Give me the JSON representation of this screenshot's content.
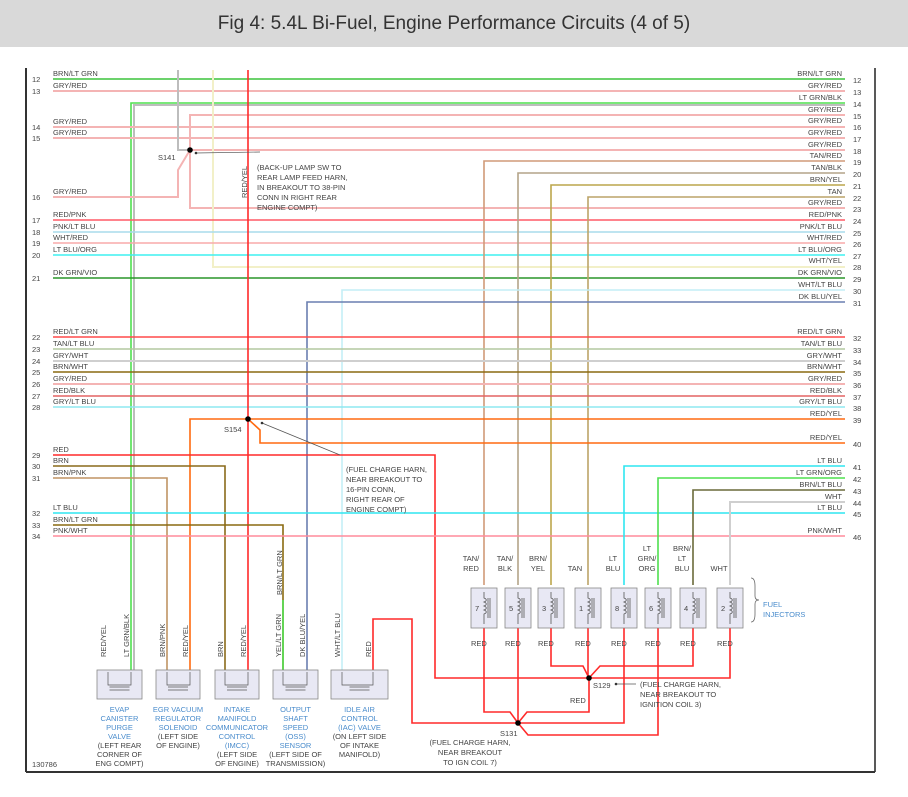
{
  "title": "Fig 4: 5.4L Bi-Fuel, Engine Performance Circuits (4 of 5)",
  "figure_id": "130786",
  "wire_colors": {
    "grn": "#3cc43c",
    "pink": "#f4b4b4",
    "ltgrn": "#4fe04f",
    "red": "#ff2a2a",
    "orange": "#ff6a10",
    "yellow": "#f4efa8",
    "gray": "#bdbdbd",
    "tanred": "#d09a78",
    "tanblk": "#b4a488",
    "brnyel": "#bca64c",
    "tan": "#bca468",
    "redpnk": "#ff5a66",
    "pnkltblu": "#a8dcec",
    "whtred": "#f8aaaa",
    "ltbluorg": "#3ff0f0",
    "whtyel": "#f2f0c8",
    "dkgrnvio": "#2a962a",
    "whtltblu": "#c4eef6",
    "dkbluyel": "#6a7fb0",
    "brn": "#8a6a1a",
    "brnpnk": "#c09464",
    "redblk": "#e46464",
    "gryltblu": "#8ee8f0",
    "ltblu": "#2ee6f0",
    "pnkwht": "#ff8c9c",
    "redltgrn": "#ff4a4a",
    "tanltblu": "#b4c8a0",
    "grywht": "#cfcfcf",
    "brnwht": "#8a6a10",
    "brnltblu": "#6a6a3a",
    "splice": "#000000",
    "component_fill": "#e8e8f4",
    "component_label": "#4a8ccc"
  },
  "left_rows": [
    {
      "num": "12",
      "label": "BRN/LT GRN"
    },
    {
      "num": "13",
      "label": "GRY/RED"
    },
    {
      "num": "14",
      "label": "GRY/RED"
    },
    {
      "num": "15",
      "label": "GRY/RED"
    },
    {
      "num": "16",
      "label": "GRY/RED"
    },
    {
      "num": "17",
      "label": "RED/PNK"
    },
    {
      "num": "18",
      "label": "PNK/LT BLU"
    },
    {
      "num": "19",
      "label": "WHT/RED"
    },
    {
      "num": "20",
      "label": "LT BLU/ORG"
    },
    {
      "num": "21",
      "label": "DK GRN/VIO"
    },
    {
      "num": "22",
      "label": "RED/LT GRN"
    },
    {
      "num": "23",
      "label": "TAN/LT BLU"
    },
    {
      "num": "24",
      "label": "GRY/WHT"
    },
    {
      "num": "25",
      "label": "BRN/WHT"
    },
    {
      "num": "26",
      "label": "GRY/RED"
    },
    {
      "num": "27",
      "label": "RED/BLK"
    },
    {
      "num": "28",
      "label": "GRY/LT BLU"
    },
    {
      "num": "29",
      "label": "RED"
    },
    {
      "num": "30",
      "label": "BRN"
    },
    {
      "num": "31",
      "label": "BRN/PNK"
    },
    {
      "num": "32",
      "label": "LT BLU"
    },
    {
      "num": "33",
      "label": "BRN/LT GRN"
    },
    {
      "num": "34",
      "label": "PNK/WHT"
    }
  ],
  "right_rows": [
    {
      "num": "12",
      "label": "BRN/LT GRN"
    },
    {
      "num": "13",
      "label": "GRY/RED"
    },
    {
      "num": "14",
      "label": "LT GRN/BLK"
    },
    {
      "num": "15",
      "label": "GRY/RED"
    },
    {
      "num": "16",
      "label": "GRY/RED"
    },
    {
      "num": "17",
      "label": "GRY/RED"
    },
    {
      "num": "18",
      "label": "GRY/RED"
    },
    {
      "num": "19",
      "label": "TAN/RED"
    },
    {
      "num": "20",
      "label": "TAN/BLK"
    },
    {
      "num": "21",
      "label": "BRN/YEL"
    },
    {
      "num": "22",
      "label": "TAN"
    },
    {
      "num": "23",
      "label": "GRY/RED"
    },
    {
      "num": "24",
      "label": "RED/PNK"
    },
    {
      "num": "25",
      "label": "PNK/LT BLU"
    },
    {
      "num": "26",
      "label": "WHT/RED"
    },
    {
      "num": "27",
      "label": "LT BLU/ORG"
    },
    {
      "num": "28",
      "label": "WHT/YEL"
    },
    {
      "num": "29",
      "label": "DK GRN/VIO"
    },
    {
      "num": "30",
      "label": "WHT/LT BLU"
    },
    {
      "num": "31",
      "label": "DK BLU/YEL"
    },
    {
      "num": "32",
      "label": "RED/LT GRN"
    },
    {
      "num": "33",
      "label": "TAN/LT BLU"
    },
    {
      "num": "34",
      "label": "GRY/WHT"
    },
    {
      "num": "35",
      "label": "BRN/WHT"
    },
    {
      "num": "36",
      "label": "GRY/RED"
    },
    {
      "num": "37",
      "label": "RED/BLK"
    },
    {
      "num": "38",
      "label": "GRY/LT BLU"
    },
    {
      "num": "39",
      "label": "RED/YEL"
    },
    {
      "num": "40",
      "label": "RED/YEL"
    },
    {
      "num": "41",
      "label": "LT BLU"
    },
    {
      "num": "42",
      "label": "LT GRN/ORG"
    },
    {
      "num": "43",
      "label": "BRN/LT BLU"
    },
    {
      "num": "44",
      "label": "WHT"
    },
    {
      "num": "45",
      "label": "LT BLU"
    },
    {
      "num": "46",
      "label": "PNK/WHT"
    }
  ],
  "splices": {
    "s141": {
      "id": "S141",
      "note": [
        "(BACK-UP LAMP SW TO",
        "REAR LAMP FEED HARN,",
        "IN BREAKOUT TO 38-PIN",
        "CONN IN RIGHT REAR",
        "ENGINE COMPT)"
      ]
    },
    "s154": {
      "id": "S154",
      "note": [
        "(FUEL CHARGE HARN,",
        "NEAR BREAKOUT TO",
        "16-PIN CONN,",
        "RIGHT REAR OF",
        "ENGINE COMPT)"
      ]
    },
    "s129": {
      "id": "S129",
      "note": [
        "(FUEL CHARGE HARN,",
        "NEAR BREAKOUT TO",
        "IGNITION COIL 3)"
      ]
    },
    "s131": {
      "id": "S131",
      "note": [
        "(FUEL CHARGE HARN,",
        "NEAR BREAKOUT",
        "TO IGN COIL 7)"
      ]
    }
  },
  "vertical_labels": {
    "red_yel_main": "RED/YEL",
    "brn_lt_grn": "BRN/LT GRN"
  },
  "injectors": {
    "group_label": [
      "FUEL",
      "INJECTORS"
    ],
    "items": [
      {
        "num": "7",
        "wire": [
          "TAN/",
          "RED"
        ],
        "ret": "RED"
      },
      {
        "num": "5",
        "wire": [
          "TAN/",
          "BLK"
        ],
        "ret": "RED"
      },
      {
        "num": "3",
        "wire": [
          "BRN/",
          "YEL"
        ],
        "ret": "RED"
      },
      {
        "num": "1",
        "wire": [
          "",
          "TAN"
        ],
        "ret": "RED"
      },
      {
        "num": "8",
        "wire": [
          "LT",
          "BLU"
        ],
        "ret": "RED"
      },
      {
        "num": "6",
        "wire": [
          "LT",
          "GRN/",
          "ORG"
        ],
        "ret": "RED"
      },
      {
        "num": "4",
        "wire": [
          "BRN/",
          "LT",
          "BLU"
        ],
        "ret": "RED"
      },
      {
        "num": "2",
        "wire": [
          "",
          "WHT"
        ],
        "ret": "RED"
      }
    ],
    "junction_label": "RED"
  },
  "components": [
    {
      "name": [
        "EVAP",
        "CANISTER",
        "PURGE",
        "VALVE"
      ],
      "loc": [
        "(LEFT REAR",
        "CORNER OF",
        "ENG COMPT)"
      ],
      "pins": [
        "RED/YEL",
        "LT GRN/BLK"
      ]
    },
    {
      "name": [
        "EGR VACUUM",
        "REGULATOR",
        "SOLENOID"
      ],
      "loc": [
        "(LEFT SIDE",
        "OF ENGINE)"
      ],
      "pins": [
        "BRN/PNK",
        "RED/YEL"
      ]
    },
    {
      "name": [
        "INTAKE",
        "MANIFOLD",
        "COMMUNICATOR",
        "CONTROL",
        "(IMCC)"
      ],
      "loc": [
        "(LEFT SIDE",
        "OF ENGINE)"
      ],
      "pins": [
        "BRN",
        "RED/YEL"
      ]
    },
    {
      "name": [
        "OUTPUT",
        "SHAFT",
        "SPEED",
        "(OSS)",
        "SENSOR"
      ],
      "loc": [
        "(LEFT SIDE OF",
        "TRANSMISSION)"
      ],
      "pins": [
        "YEL/LT GRN",
        "DK BLU/YEL"
      ]
    },
    {
      "name": [
        "IDLE AIR",
        "CONTROL",
        "(IAC) VALVE"
      ],
      "loc": [
        "(ON LEFT SIDE",
        "OF INTAKE",
        "MANIFOLD)"
      ],
      "pins": [
        "WHT/LT BLU",
        "RED"
      ]
    }
  ]
}
